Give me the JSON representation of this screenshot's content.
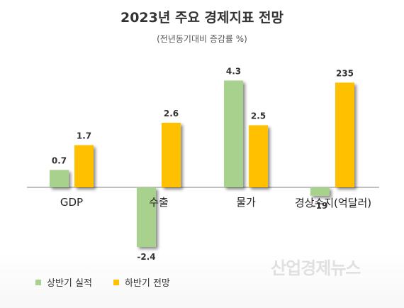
{
  "title": "2023년 주요 경제지표 전망",
  "subtitle": "(전년동기대비 증감률 %)",
  "watermark": "산업경제뉴스",
  "colors": {
    "series1": "#a9d18e",
    "series2": "#ffc000"
  },
  "chart_data": {
    "type": "bar",
    "title": "2023년 주요 경제지표 전망",
    "subtitle": "(전년동기대비 증감률 %)",
    "categories": [
      "GDP",
      "수출",
      "물가",
      "경상수지(억달러)"
    ],
    "series": [
      {
        "name": "상반기 실적",
        "values": [
          0.7,
          -2.4,
          4.3,
          -19
        ],
        "labels": [
          "0.7",
          "-2.4",
          "4.3",
          "-19"
        ]
      },
      {
        "name": "하반기 전망",
        "values": [
          1.7,
          2.6,
          2.5,
          235
        ],
        "labels": [
          "1.7",
          "2.6",
          "2.5",
          "235"
        ]
      }
    ],
    "legend_position": "bottom-left",
    "grid": false,
    "note": "경상수지 values in 억달러, plotted on its own scale"
  }
}
